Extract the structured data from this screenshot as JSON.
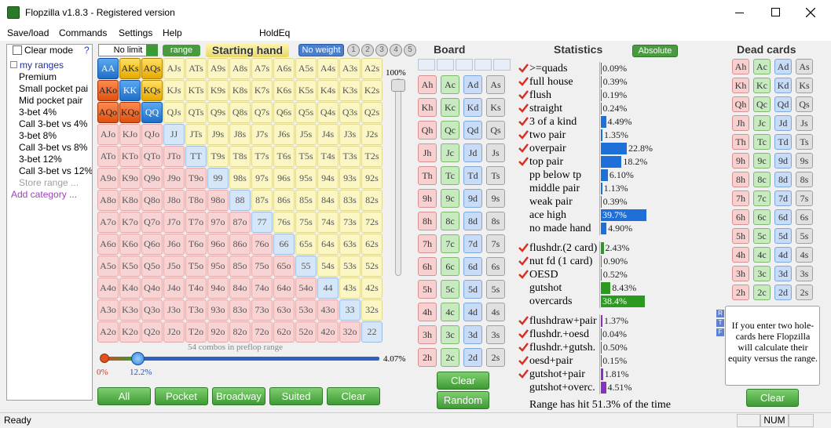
{
  "window": {
    "title": "Flopzilla v1.8.3 - Registered version"
  },
  "menu": [
    "Save/load",
    "Commands",
    "Settings",
    "Help",
    "HoldEq"
  ],
  "sidebar": {
    "clear_mode": "Clear mode",
    "help": "?",
    "root": "my ranges",
    "items": [
      "Premium",
      "Small pocket pai",
      "Mid pocket pair",
      "3-bet 4%",
      "Call 3-bet vs 4%",
      "3-bet 8%",
      "Call 3-bet vs 8%",
      "3-bet 12%",
      "Call 3-bet vs 12%"
    ],
    "store": "Store range ...",
    "add": "Add category ..."
  },
  "range_panel": {
    "limit": "No limit",
    "range_button": "range",
    "header": "Starting hand",
    "weight": "No weight",
    "presets": [
      "1",
      "2",
      "3",
      "4",
      "5"
    ],
    "grid": [
      [
        "AA",
        "AKs",
        "AQs",
        "AJs",
        "ATs",
        "A9s",
        "A8s",
        "A7s",
        "A6s",
        "A5s",
        "A4s",
        "A3s",
        "A2s"
      ],
      [
        "AKo",
        "KK",
        "KQs",
        "KJs",
        "KTs",
        "K9s",
        "K8s",
        "K7s",
        "K6s",
        "K5s",
        "K4s",
        "K3s",
        "K2s"
      ],
      [
        "AQo",
        "KQo",
        "QQ",
        "QJs",
        "QTs",
        "Q9s",
        "Q8s",
        "Q7s",
        "Q6s",
        "Q5s",
        "Q4s",
        "Q3s",
        "Q2s"
      ],
      [
        "AJo",
        "KJo",
        "QJo",
        "JJ",
        "JTs",
        "J9s",
        "J8s",
        "J7s",
        "J6s",
        "J5s",
        "J4s",
        "J3s",
        "J2s"
      ],
      [
        "ATo",
        "KTo",
        "QTo",
        "JTo",
        "TT",
        "T9s",
        "T8s",
        "T7s",
        "T6s",
        "T5s",
        "T4s",
        "T3s",
        "T2s"
      ],
      [
        "A9o",
        "K9o",
        "Q9o",
        "J9o",
        "T9o",
        "99",
        "98s",
        "97s",
        "96s",
        "95s",
        "94s",
        "93s",
        "92s"
      ],
      [
        "A8o",
        "K8o",
        "Q8o",
        "J8o",
        "T8o",
        "98o",
        "88",
        "87s",
        "86s",
        "85s",
        "84s",
        "83s",
        "82s"
      ],
      [
        "A7o",
        "K7o",
        "Q7o",
        "J7o",
        "T7o",
        "97o",
        "87o",
        "77",
        "76s",
        "75s",
        "74s",
        "73s",
        "72s"
      ],
      [
        "A6o",
        "K6o",
        "Q6o",
        "J6o",
        "T6o",
        "96o",
        "86o",
        "76o",
        "66",
        "65s",
        "64s",
        "63s",
        "62s"
      ],
      [
        "A5o",
        "K5o",
        "Q5o",
        "J5o",
        "T5o",
        "95o",
        "85o",
        "75o",
        "65o",
        "55",
        "54s",
        "53s",
        "52s"
      ],
      [
        "A4o",
        "K4o",
        "Q4o",
        "J4o",
        "T4o",
        "94o",
        "84o",
        "74o",
        "64o",
        "54o",
        "44",
        "43s",
        "42s"
      ],
      [
        "A3o",
        "K3o",
        "Q3o",
        "J3o",
        "T3o",
        "93o",
        "83o",
        "73o",
        "63o",
        "53o",
        "43o",
        "33",
        "32s"
      ],
      [
        "A2o",
        "K2o",
        "Q2o",
        "J2o",
        "T2o",
        "92o",
        "82o",
        "72o",
        "62o",
        "52o",
        "42o",
        "32o",
        "22"
      ]
    ],
    "selected": [
      "AA",
      "AKs",
      "AQs",
      "AKo",
      "KK",
      "KQs",
      "AQo",
      "KQo",
      "QQ"
    ],
    "weight_max": "100%",
    "combos": "54 combos in preflop range",
    "slider_min": "0%",
    "slider_pos": "12.2%",
    "slider_max": "4.07%",
    "buttons": [
      "All",
      "Pocket",
      "Broadway",
      "Suited",
      "Clear"
    ]
  },
  "board": {
    "header": "Board",
    "cards": [
      [
        "Ah",
        "Ac",
        "Ad",
        "As"
      ],
      [
        "Kh",
        "Kc",
        "Kd",
        "Ks"
      ],
      [
        "Qh",
        "Qc",
        "Qd",
        "Qs"
      ],
      [
        "Jh",
        "Jc",
        "Jd",
        "Js"
      ],
      [
        "Th",
        "Tc",
        "Td",
        "Ts"
      ],
      [
        "9h",
        "9c",
        "9d",
        "9s"
      ],
      [
        "8h",
        "8c",
        "8d",
        "8s"
      ],
      [
        "7h",
        "7c",
        "7d",
        "7s"
      ],
      [
        "6h",
        "6c",
        "6d",
        "6s"
      ],
      [
        "5h",
        "5c",
        "5d",
        "5s"
      ],
      [
        "4h",
        "4c",
        "4d",
        "4s"
      ],
      [
        "3h",
        "3c",
        "3d",
        "3s"
      ],
      [
        "2h",
        "2c",
        "2d",
        "2s"
      ]
    ],
    "buttons": [
      "Clear",
      "Random"
    ]
  },
  "statistics": {
    "header": "Statistics",
    "mode": "Absolute",
    "made": [
      {
        "label": ">=quads",
        "value": "0.09%",
        "check": true
      },
      {
        "label": "full house",
        "value": "0.39%",
        "check": true
      },
      {
        "label": "flush",
        "value": "0.19%",
        "check": true
      },
      {
        "label": "straight",
        "value": "0.24%",
        "check": true
      },
      {
        "label": "3 of a kind",
        "value": "4.49%",
        "check": true
      },
      {
        "label": "two pair",
        "value": "1.35%",
        "check": true
      },
      {
        "label": "overpair",
        "value": "22.8%",
        "check": true
      },
      {
        "label": "top pair",
        "value": "18.2%",
        "check": true
      },
      {
        "label": "pp below tp",
        "value": "6.10%",
        "check": false
      },
      {
        "label": "middle pair",
        "value": "1.13%",
        "check": false
      },
      {
        "label": "weak pair",
        "value": "0.39%",
        "check": false
      },
      {
        "label": "ace high",
        "value": "39.7%",
        "check": false
      },
      {
        "label": "no made hand",
        "value": "4.90%",
        "check": false
      }
    ],
    "draws": [
      {
        "label": "flushdr.(2 card)",
        "value": "2.43%",
        "check": true
      },
      {
        "label": "nut fd (1 card)",
        "value": "0.90%",
        "check": true
      },
      {
        "label": "OESD",
        "value": "0.52%",
        "check": true
      },
      {
        "label": "gutshot",
        "value": "8.43%",
        "check": false
      },
      {
        "label": "overcards",
        "value": "38.4%",
        "check": false
      }
    ],
    "combos": [
      {
        "label": "flushdraw+pair",
        "value": "1.37%",
        "check": true
      },
      {
        "label": "flushdr.+oesd",
        "value": "0.04%",
        "check": true
      },
      {
        "label": "flushdr.+gutsh.",
        "value": "0.50%",
        "check": true
      },
      {
        "label": "oesd+pair",
        "value": "0.15%",
        "check": true
      },
      {
        "label": "gutshot+pair",
        "value": "1.81%",
        "check": true
      },
      {
        "label": "gutshot+overc.",
        "value": "4.51%",
        "check": false
      }
    ],
    "summary": "Range has hit 51.3% of the time"
  },
  "dead_cards": {
    "header": "Dead cards",
    "cards": [
      [
        "Ah",
        "Ac",
        "Ad",
        "As"
      ],
      [
        "Kh",
        "Kc",
        "Kd",
        "Ks"
      ],
      [
        "Qh",
        "Qc",
        "Qd",
        "Qs"
      ],
      [
        "Jh",
        "Jc",
        "Jd",
        "Js"
      ],
      [
        "Th",
        "Tc",
        "Td",
        "Ts"
      ],
      [
        "9h",
        "9c",
        "9d",
        "9s"
      ],
      [
        "8h",
        "8c",
        "8d",
        "8s"
      ],
      [
        "7h",
        "7c",
        "7d",
        "7s"
      ],
      [
        "6h",
        "6c",
        "6d",
        "6s"
      ],
      [
        "5h",
        "5c",
        "5d",
        "5s"
      ],
      [
        "4h",
        "4c",
        "4d",
        "4s"
      ],
      [
        "3h",
        "3c",
        "3d",
        "3s"
      ],
      [
        "2h",
        "2c",
        "2d",
        "2s"
      ]
    ],
    "flags": [
      "R",
      "T",
      "F"
    ],
    "info": "If you enter two hole-cards here Flopzilla will calculate their equity versus the range.",
    "button": "Clear"
  },
  "status": {
    "left": "Ready",
    "num": "NUM"
  }
}
